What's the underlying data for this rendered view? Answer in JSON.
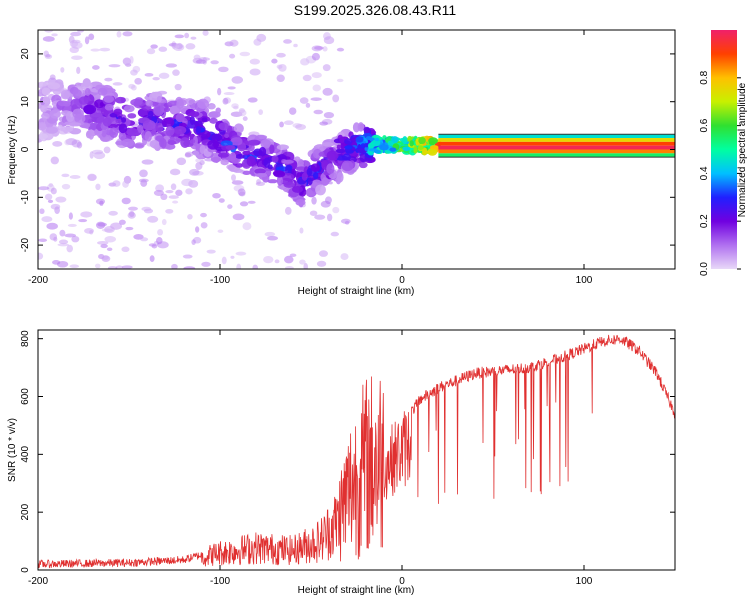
{
  "title": "S199.2025.326.08.43.R11",
  "chart_data": [
    {
      "type": "heatmap",
      "name": "spectrogram",
      "xlabel": "Height of straight line (km)",
      "ylabel": "Frequency (Hz)",
      "xlim": [
        -200,
        150
      ],
      "ylim": [
        -25,
        25
      ],
      "xticks": [
        -200,
        -100,
        0,
        100
      ],
      "yticks": [
        -20,
        -10,
        0,
        10,
        20
      ],
      "colorbar": {
        "label": "Normalized spectral amplitude",
        "range": [
          0,
          1
        ],
        "ticks": [
          0.0,
          0.2,
          0.4,
          0.6,
          0.8
        ],
        "colormap": [
          "#e8d8f8",
          "#b070f0",
          "#7000e0",
          "#2020ff",
          "#00c0ff",
          "#00ffa0",
          "#30e030",
          "#c8f000",
          "#ffc000",
          "#ff4000",
          "#f0206a"
        ]
      },
      "ridge": [
        {
          "x": -200,
          "y": 8,
          "amp": 0.08
        },
        {
          "x": -180,
          "y": 9,
          "amp": 0.14
        },
        {
          "x": -165,
          "y": 8,
          "amp": 0.22
        },
        {
          "x": -150,
          "y": 6,
          "amp": 0.25
        },
        {
          "x": -135,
          "y": 6,
          "amp": 0.24
        },
        {
          "x": -120,
          "y": 5,
          "amp": 0.26
        },
        {
          "x": -105,
          "y": 4,
          "amp": 0.25
        },
        {
          "x": -95,
          "y": 1,
          "amp": 0.28
        },
        {
          "x": -85,
          "y": -1,
          "amp": 0.3
        },
        {
          "x": -75,
          "y": -2,
          "amp": 0.3
        },
        {
          "x": -65,
          "y": -4,
          "amp": 0.28
        },
        {
          "x": -55,
          "y": -7,
          "amp": 0.25
        },
        {
          "x": -45,
          "y": -4,
          "amp": 0.28
        },
        {
          "x": -35,
          "y": -2,
          "amp": 0.22
        },
        {
          "x": -25,
          "y": 1,
          "amp": 0.3
        },
        {
          "x": -15,
          "y": 1,
          "amp": 0.42
        },
        {
          "x": -5,
          "y": 1,
          "amp": 0.5
        },
        {
          "x": 10,
          "y": 1,
          "amp": 0.65
        },
        {
          "x": 30,
          "y": 1,
          "amp": 0.9
        },
        {
          "x": 150,
          "y": 1,
          "amp": 0.95
        }
      ]
    },
    {
      "type": "line",
      "name": "snr",
      "xlabel": "Height of straight line (km)",
      "ylabel": "SNR (10 * v/v)",
      "xlim": [
        -200,
        150
      ],
      "ylim": [
        0,
        830
      ],
      "xticks": [
        -200,
        -100,
        0,
        100
      ],
      "yticks": [
        0,
        200,
        400,
        600,
        800
      ],
      "color": "#e03030",
      "envelope": [
        {
          "x": -200,
          "y": 20
        },
        {
          "x": -150,
          "y": 25
        },
        {
          "x": -120,
          "y": 35
        },
        {
          "x": -100,
          "y": 70
        },
        {
          "x": -80,
          "y": 90
        },
        {
          "x": -60,
          "y": 80
        },
        {
          "x": -45,
          "y": 120
        },
        {
          "x": -35,
          "y": 200
        },
        {
          "x": -28,
          "y": 320
        },
        {
          "x": -20,
          "y": 400
        },
        {
          "x": -10,
          "y": 430
        },
        {
          "x": 0,
          "y": 500
        },
        {
          "x": 10,
          "y": 590
        },
        {
          "x": 20,
          "y": 630
        },
        {
          "x": 40,
          "y": 680
        },
        {
          "x": 70,
          "y": 700
        },
        {
          "x": 90,
          "y": 740
        },
        {
          "x": 110,
          "y": 790
        },
        {
          "x": 120,
          "y": 800
        },
        {
          "x": 130,
          "y": 760
        },
        {
          "x": 140,
          "y": 680
        },
        {
          "x": 150,
          "y": 540
        }
      ]
    }
  ]
}
